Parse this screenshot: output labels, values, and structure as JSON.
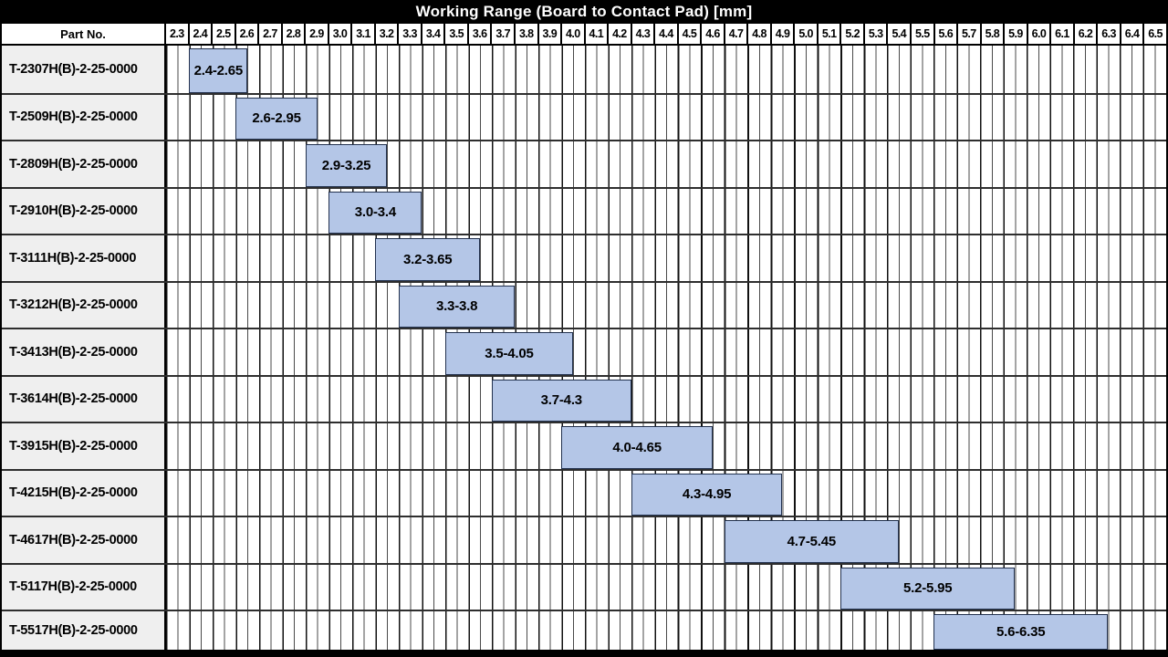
{
  "title": "Working Range (Board to Contact Pad) [mm]",
  "header": {
    "part_no_label": "Part No."
  },
  "colors": {
    "title_bg": "#000000",
    "title_text": "#ffffff",
    "bar_fill": "#b4c6e7",
    "bar_border": "#22314e",
    "label_cell_bg": "#efefef",
    "grid_major_line": "#111111",
    "grid_minor_line": "#4a4a4a"
  },
  "chart_data": {
    "type": "bar",
    "subtype": "horizontal-range-gantt",
    "title": "Working Range (Board to Contact Pad) [mm]",
    "xlabel": "Working Range (Board to Contact Pad) [mm]",
    "ylabel": "Part No.",
    "x_axis": {
      "min": 2.3,
      "max": 6.5,
      "step": 0.1,
      "minor_step": 0.05,
      "grid": true,
      "tick_labels": [
        "2.3",
        "2.4",
        "2.5",
        "2.6",
        "2.7",
        "2.8",
        "2.9",
        "3.0",
        "3.1",
        "3.2",
        "3.3",
        "3.4",
        "3.5",
        "3.6",
        "3.7",
        "3.8",
        "3.9",
        "4.0",
        "4.1",
        "4.2",
        "4.3",
        "4.4",
        "4.5",
        "4.6",
        "4.7",
        "4.8",
        "4.9",
        "5.0",
        "5.1",
        "5.2",
        "5.3",
        "5.4",
        "5.5",
        "5.6",
        "5.7",
        "5.8",
        "5.9",
        "6.0",
        "6.1",
        "6.2",
        "6.3",
        "6.4",
        "6.5"
      ]
    },
    "rows": [
      {
        "part_no": "T-2307H(B)-2-25-0000",
        "range_start": 2.4,
        "range_end": 2.65,
        "range_label": "2.4-2.65"
      },
      {
        "part_no": "T-2509H(B)-2-25-0000",
        "range_start": 2.6,
        "range_end": 2.95,
        "range_label": "2.6-2.95"
      },
      {
        "part_no": "T-2809H(B)-2-25-0000",
        "range_start": 2.9,
        "range_end": 3.25,
        "range_label": "2.9-3.25"
      },
      {
        "part_no": "T-2910H(B)-2-25-0000",
        "range_start": 3.0,
        "range_end": 3.4,
        "range_label": "3.0-3.4"
      },
      {
        "part_no": "T-3111H(B)-2-25-0000",
        "range_start": 3.2,
        "range_end": 3.65,
        "range_label": "3.2-3.65"
      },
      {
        "part_no": "T-3212H(B)-2-25-0000",
        "range_start": 3.3,
        "range_end": 3.8,
        "range_label": "3.3-3.8"
      },
      {
        "part_no": "T-3413H(B)-2-25-0000",
        "range_start": 3.5,
        "range_end": 4.05,
        "range_label": "3.5-4.05"
      },
      {
        "part_no": "T-3614H(B)-2-25-0000",
        "range_start": 3.7,
        "range_end": 4.3,
        "range_label": "3.7-4.3"
      },
      {
        "part_no": "T-3915H(B)-2-25-0000",
        "range_start": 4.0,
        "range_end": 4.65,
        "range_label": "4.0-4.65"
      },
      {
        "part_no": "T-4215H(B)-2-25-0000",
        "range_start": 4.3,
        "range_end": 4.95,
        "range_label": "4.3-4.95"
      },
      {
        "part_no": "T-4617H(B)-2-25-0000",
        "range_start": 4.7,
        "range_end": 5.45,
        "range_label": "4.7-5.45"
      },
      {
        "part_no": "T-5117H(B)-2-25-0000",
        "range_start": 5.2,
        "range_end": 5.95,
        "range_label": "5.2-5.95"
      },
      {
        "part_no": "T-5517H(B)-2-25-0000",
        "range_start": 5.6,
        "range_end": 6.35,
        "range_label": "5.6-6.35"
      }
    ]
  }
}
